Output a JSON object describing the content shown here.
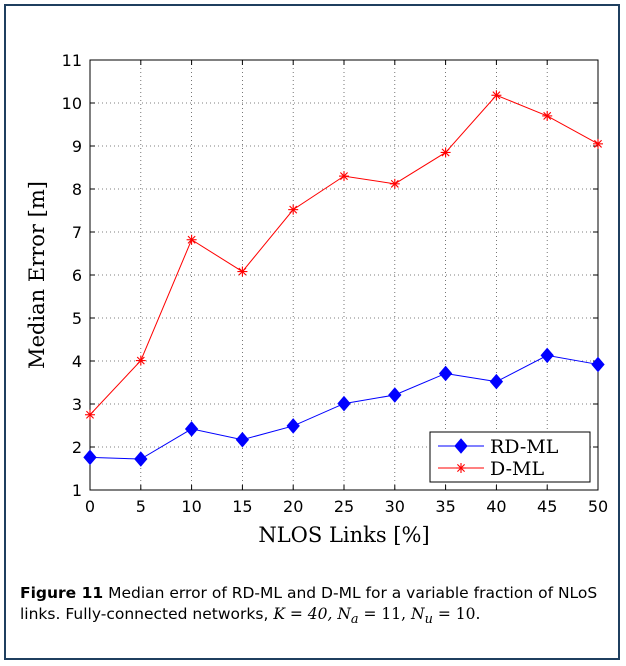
{
  "chart_data": {
    "type": "line",
    "title": "",
    "xlabel": "NLOS Links [%]",
    "ylabel": "Median Error [m]",
    "xlim": [
      0,
      50
    ],
    "ylim": [
      1,
      11
    ],
    "xticks": [
      "0",
      "5",
      "10",
      "15",
      "20",
      "25",
      "30",
      "35",
      "40",
      "45",
      "50"
    ],
    "yticks": [
      "1",
      "2",
      "3",
      "4",
      "5",
      "6",
      "7",
      "8",
      "9",
      "10",
      "11"
    ],
    "grid": true,
    "legend_position": "bottom-right",
    "x": [
      0,
      5,
      10,
      15,
      20,
      25,
      30,
      35,
      40,
      45,
      50
    ],
    "series": [
      {
        "name": "RD-ML",
        "color": "#0000ff",
        "marker": "diamond",
        "values": [
          1.76,
          1.72,
          2.42,
          2.17,
          2.49,
          3.01,
          3.21,
          3.71,
          3.52,
          4.13,
          3.92
        ]
      },
      {
        "name": "D-ML",
        "color": "#ff0000",
        "marker": "asterisk",
        "values": [
          2.75,
          4.01,
          6.82,
          6.08,
          7.52,
          8.3,
          8.12,
          8.85,
          10.18,
          9.7,
          9.05
        ]
      }
    ]
  },
  "caption": {
    "label": "Figure 11",
    "text1": "Median error of RD-ML and D-ML for a variable fraction of NLoS links. Fully-connected networks, ",
    "k_eq": "K = 40,",
    "na_eq": "N",
    "na_sub": "a",
    "na_val": " = 11, ",
    "nu_eq": "N",
    "nu_sub": "u",
    "nu_val": " = 10."
  }
}
